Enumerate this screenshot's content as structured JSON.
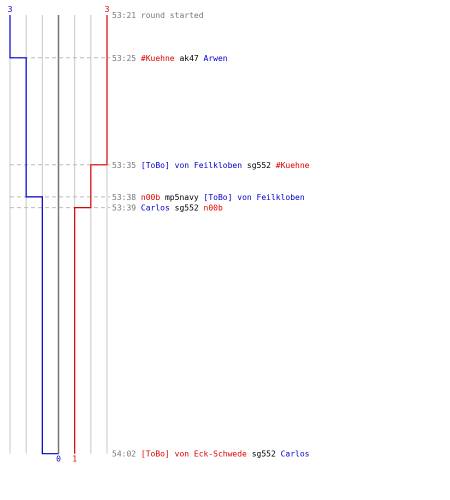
{
  "chart_data": {
    "type": "line",
    "teams": [
      {
        "name": "blue",
        "color": "#0000cc",
        "start": 3,
        "end": 0
      },
      {
        "name": "red",
        "color": "#dd0000",
        "start": 3,
        "end": 1
      }
    ],
    "ylim": [
      0,
      23
    ],
    "xlim": [
      0,
      6
    ],
    "grid": true,
    "events": [
      {
        "t": 0,
        "time": "53:21",
        "parts": [
          {
            "text": "round started",
            "team": "none"
          }
        ]
      },
      {
        "t": 4,
        "time": "53:25",
        "parts": [
          {
            "text": "#Kuehne",
            "team": "red"
          },
          {
            "text": " ak47 ",
            "team": "none"
          },
          {
            "text": "Arwen",
            "team": "blue"
          }
        ]
      },
      {
        "t": 14,
        "time": "53:35",
        "parts": [
          {
            "text": "[ToBo] von Feilkloben",
            "team": "blue"
          },
          {
            "text": " sg552 ",
            "team": "none"
          },
          {
            "text": "#Kuehne",
            "team": "red"
          }
        ]
      },
      {
        "t": 17,
        "time": "53:38",
        "parts": [
          {
            "text": "n00b",
            "team": "red"
          },
          {
            "text": " mp5navy ",
            "team": "none"
          },
          {
            "text": "[ToBo] von Feilkloben",
            "team": "blue"
          }
        ]
      },
      {
        "t": 18,
        "time": "53:39",
        "parts": [
          {
            "text": "Carlos",
            "team": "blue"
          },
          {
            "text": " sg552 ",
            "team": "none"
          },
          {
            "text": "n00b",
            "team": "red"
          }
        ]
      },
      {
        "t": 41,
        "time": "54:02",
        "parts": [
          {
            "text": "[ToBo] von Eck-Schwede",
            "team": "red"
          },
          {
            "text": " sg552 ",
            "team": "none"
          },
          {
            "text": "Carlos",
            "team": "blue"
          }
        ]
      }
    ],
    "series": [
      {
        "team": "blue",
        "steps": [
          {
            "t": 0,
            "v": 3
          },
          {
            "t": 4,
            "v": 2
          },
          {
            "t": 17,
            "v": 1
          },
          {
            "t": 41,
            "v": 0
          }
        ]
      },
      {
        "team": "red",
        "steps": [
          {
            "t": 0,
            "v": 3
          },
          {
            "t": 14,
            "v": 2
          },
          {
            "t": 18,
            "v": 1
          }
        ]
      }
    ],
    "colors": {
      "blue": "#0000cc",
      "red": "#dd0000",
      "none": "#000000",
      "time": "#777777",
      "grid": "#c8c8c8",
      "center": "#777777"
    }
  }
}
